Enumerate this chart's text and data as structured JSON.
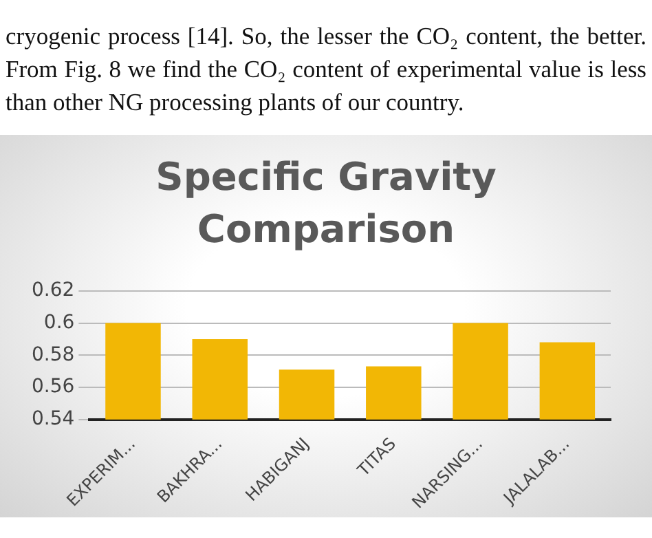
{
  "chart_data": {
    "type": "bar",
    "title": "Specific Gravity Comparison",
    "categories": [
      "EXPERIM...",
      "BAKHRA...",
      "HABIGANJ",
      "TITAS",
      "NARSING...",
      "JALALAB..."
    ],
    "values": [
      0.6,
      0.59,
      0.571,
      0.573,
      0.6,
      0.588
    ],
    "color": "#f2b705",
    "ylim": [
      0.54,
      0.62
    ],
    "yticks": [
      0.54,
      0.56,
      0.58,
      0.6,
      0.62
    ],
    "grid": "y",
    "legend": false,
    "annotations": [
      "cryogenic process [14]. So, the lesser the CO₂ content, the better. From Fig. 8 we find the CO₂ content of experimental value is less than other NG processing plants of our country."
    ]
  }
}
